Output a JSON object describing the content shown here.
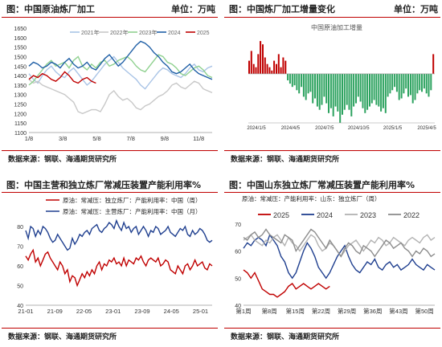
{
  "panels": [
    {
      "title": "图：中国原油炼厂加工",
      "unit": "单位：万吨",
      "source": "数据来源：钢联、海通期货研究所",
      "chart_data": {
        "type": "line",
        "x_ticks": [
          "1/8",
          "3/8",
          "5/8",
          "7/8",
          "9/8",
          "11/8"
        ],
        "y_ticks": [
          1100,
          1150,
          1200,
          1250,
          1300,
          1350,
          1400,
          1450,
          1500,
          1550,
          1600,
          1650
        ],
        "ylim": [
          1100,
          1650
        ],
        "legend_position": "top",
        "series": [
          {
            "name": "2021年",
            "color": "#a9c4e6",
            "values": [
              1410,
              1380,
              1360,
              1400,
              1430,
              1450,
              1420,
              1400,
              1390,
              1420,
              1440,
              1410,
              1380,
              1350,
              1370,
              1400,
              1430,
              1460,
              1480,
              1500,
              1470,
              1440,
              1420,
              1400,
              1380,
              1350,
              1330,
              1360,
              1390,
              1420,
              1440,
              1430,
              1410,
              1400,
              1390,
              1410,
              1440,
              1460,
              1430,
              1420,
              1440,
              1450
            ]
          },
          {
            "name": "2022年",
            "color": "#c8c8c8",
            "values": [
              1380,
              1360,
              1370,
              1350,
              1340,
              1330,
              1320,
              1310,
              1300,
              1280,
              1260,
              1210,
              1200,
              1210,
              1220,
              1220,
              1210,
              1250,
              1300,
              1320,
              1290,
              1270,
              1280,
              1260,
              1230,
              1220,
              1240,
              1250,
              1270,
              1290,
              1300,
              1320,
              1350,
              1360,
              1340,
              1330,
              1350,
              1370,
              1360,
              1330,
              1320,
              1310
            ]
          },
          {
            "name": "2023年",
            "color": "#8fd18f",
            "values": [
              1350,
              1370,
              1400,
              1430,
              1460,
              1480,
              1450,
              1460,
              1470,
              1440,
              1480,
              1500,
              1450,
              1430,
              1460,
              1440,
              1470,
              1480,
              1450,
              1460,
              1480,
              1490,
              1500,
              1480,
              1450,
              1430,
              1420,
              1450,
              1480,
              1510,
              1500,
              1470,
              1460,
              1440,
              1410,
              1400,
              1420,
              1440,
              1450,
              1430,
              1400,
              1390
            ]
          },
          {
            "name": "2024",
            "color": "#1f5fa6",
            "values": [
              1450,
              1470,
              1460,
              1440,
              1450,
              1470,
              1460,
              1440,
              1470,
              1490,
              1460,
              1440,
              1450,
              1470,
              1440,
              1430,
              1460,
              1490,
              1510,
              1480,
              1450,
              1470,
              1500,
              1530,
              1560,
              1580,
              1570,
              1550,
              1520,
              1500,
              1470,
              1450,
              1420,
              1410,
              1420,
              1440,
              1460,
              1430,
              1410,
              1400,
              1390,
              1380
            ]
          },
          {
            "name": "2025",
            "color": "#c00000",
            "values": [
              1380,
              1400,
              1390,
              1410,
              1400,
              1380,
              1370,
              1390,
              1420,
              1400,
              1370,
              1360,
              1380,
              1390,
              1370,
              1360
            ]
          }
        ]
      }
    },
    {
      "title": "图：中国炼厂加工增量变化",
      "unit": "单位：万吨",
      "source": "数据来源：钢联、海通期货研究所",
      "chart_data": {
        "type": "bar",
        "title": "中国原油加工增量",
        "x_ticks": [
          "2024/1/5",
          "2024/4/5",
          "2024/7/5",
          "2024/10/5",
          "2025/1/5",
          "2025/4/5"
        ],
        "positive_color": "#c00000",
        "negative_color": "#2ca25f",
        "ylim": [
          -150,
          120
        ],
        "values": [
          40,
          70,
          30,
          20,
          60,
          100,
          90,
          50,
          30,
          20,
          10,
          40,
          30,
          60,
          20,
          50,
          40,
          -20,
          -30,
          -40,
          -35,
          -50,
          -60,
          -40,
          -70,
          -80,
          -60,
          -55,
          -90,
          -75,
          -100,
          -110,
          -95,
          -70,
          -90,
          -120,
          -105,
          -130,
          -100,
          -115,
          -150,
          -125,
          -110,
          -95,
          -110,
          -130,
          -100,
          -90,
          -70,
          -85,
          -105,
          -120,
          -110,
          -100,
          -90,
          -80,
          -95,
          -100,
          -115,
          -105,
          -120,
          -70,
          -60,
          -50,
          -40,
          -55,
          -80,
          -75,
          -60,
          -45,
          -70,
          -65,
          -90,
          -80,
          -60,
          -50,
          -55,
          -45,
          -60,
          -70,
          -50,
          60
        ]
      }
    },
    {
      "title": "图：中国主营和独立炼厂常减压装置产能利用率%",
      "unit": "",
      "source": "数据来源：钢联、海通期货研究所",
      "chart_data": {
        "type": "line",
        "x_ticks": [
          "21-01",
          "21-09",
          "22-05",
          "23-01",
          "23-09",
          "24-05",
          "25-01"
        ],
        "y_ticks": [
          40,
          50,
          60,
          70,
          80
        ],
        "ylim": [
          40,
          80
        ],
        "legend_position": "top",
        "series": [
          {
            "name": "原油：常减压：独立炼厂：产能利用率：中国（周）",
            "color": "#c00000",
            "values": [
              65,
              63,
              66,
              68,
              62,
              64,
              60,
              63,
              66,
              67,
              64,
              62,
              60,
              58,
              62,
              60,
              56,
              58,
              52,
              55,
              54,
              50,
              53,
              56,
              54,
              57,
              55,
              58,
              56,
              60,
              62,
              58,
              61,
              60,
              63,
              62,
              64,
              61,
              62,
              60,
              64,
              60,
              63,
              62,
              61,
              64,
              63,
              65,
              62,
              60,
              63,
              64,
              63,
              62,
              64,
              60,
              61,
              63,
              62,
              58,
              57,
              56,
              60,
              58,
              56,
              60,
              61,
              58,
              60,
              63,
              60,
              61,
              62,
              59,
              58,
              61,
              60
            ]
          },
          {
            "name": "原油：常减压：主营炼厂：产能利用率：中国（月）",
            "color": "#1f3f8f",
            "values": [
              78,
              74,
              80,
              79,
              75,
              78,
              76,
              80,
              79,
              77,
              74,
              72,
              73,
              76,
              74,
              72,
              70,
              68,
              69,
              74,
              71,
              73,
              76,
              75,
              77,
              78,
              76,
              79,
              80,
              81,
              78,
              77,
              79,
              80,
              82,
              81,
              79,
              83,
              80,
              78,
              82,
              79,
              80,
              77,
              79,
              80,
              76,
              78,
              80,
              78,
              75,
              78,
              77,
              80,
              79,
              76,
              77,
              78,
              80,
              77,
              76,
              75,
              77,
              79,
              78,
              80,
              76,
              75,
              78,
              76,
              77,
              79,
              78,
              76,
              73,
              72,
              73
            ]
          }
        ]
      }
    },
    {
      "title": "图：中国山东独立炼厂常减压装置产能利用率%",
      "unit": "",
      "source": "数据来源：钢联、海通期货研究所",
      "chart_data": {
        "type": "line",
        "subtitle": "原油：常减压：产能利用率：山东：独立炼厂（周）",
        "x_ticks": [
          "第1周",
          "第8周",
          "第15周",
          "第22周",
          "第29周",
          "第36周",
          "第43周",
          "第50周"
        ],
        "y_ticks": [
          40,
          50,
          60,
          70
        ],
        "ylim": [
          40,
          72
        ],
        "legend_position": "top",
        "series": [
          {
            "name": "2025",
            "color": "#c00000",
            "values": [
              53,
              52,
              50,
              52,
              49,
              46,
              45,
              44,
              44,
              43,
              44,
              45,
              47,
              48,
              46,
              47,
              48,
              47,
              46,
              47,
              48,
              47,
              46,
              47
            ]
          },
          {
            "name": "2024",
            "color": "#1f3f8f",
            "values": [
              61,
              63,
              62,
              64,
              65,
              64,
              62,
              66,
              64,
              62,
              58,
              56,
              52,
              50,
              52,
              56,
              60,
              63,
              61,
              58,
              54,
              52,
              50,
              52,
              55,
              58,
              60,
              62,
              58,
              55,
              53,
              52,
              54,
              56,
              55,
              57,
              54,
              53,
              55,
              56,
              54,
              55,
              53,
              54,
              55,
              57,
              55,
              54,
              53,
              55,
              54,
              53
            ]
          },
          {
            "name": "2023",
            "color": "#b3b3b3",
            "values": [
              64,
              65,
              66,
              64,
              63,
              62,
              64,
              63,
              65,
              66,
              64,
              62,
              65,
              63,
              62,
              60,
              62,
              64,
              66,
              65,
              62,
              60,
              61,
              63,
              62,
              60,
              58,
              60,
              62,
              63,
              64,
              62,
              60,
              62,
              64,
              63,
              65,
              64,
              62,
              63,
              65,
              64,
              63,
              62,
              64,
              65,
              64,
              63,
              65,
              66,
              64,
              65
            ]
          },
          {
            "name": "2022",
            "color": "#8c8c8c",
            "values": [
              65,
              64,
              66,
              67,
              65,
              66,
              68,
              66,
              65,
              64,
              63,
              66,
              65,
              64,
              60,
              62,
              64,
              66,
              68,
              67,
              65,
              63,
              61,
              64,
              62,
              60,
              58,
              61,
              63,
              62,
              60,
              59,
              62,
              61,
              60,
              58,
              60,
              62,
              64,
              63,
              61,
              62,
              63,
              61,
              60,
              58,
              60,
              59,
              61,
              60,
              58,
              59
            ]
          }
        ]
      }
    }
  ]
}
